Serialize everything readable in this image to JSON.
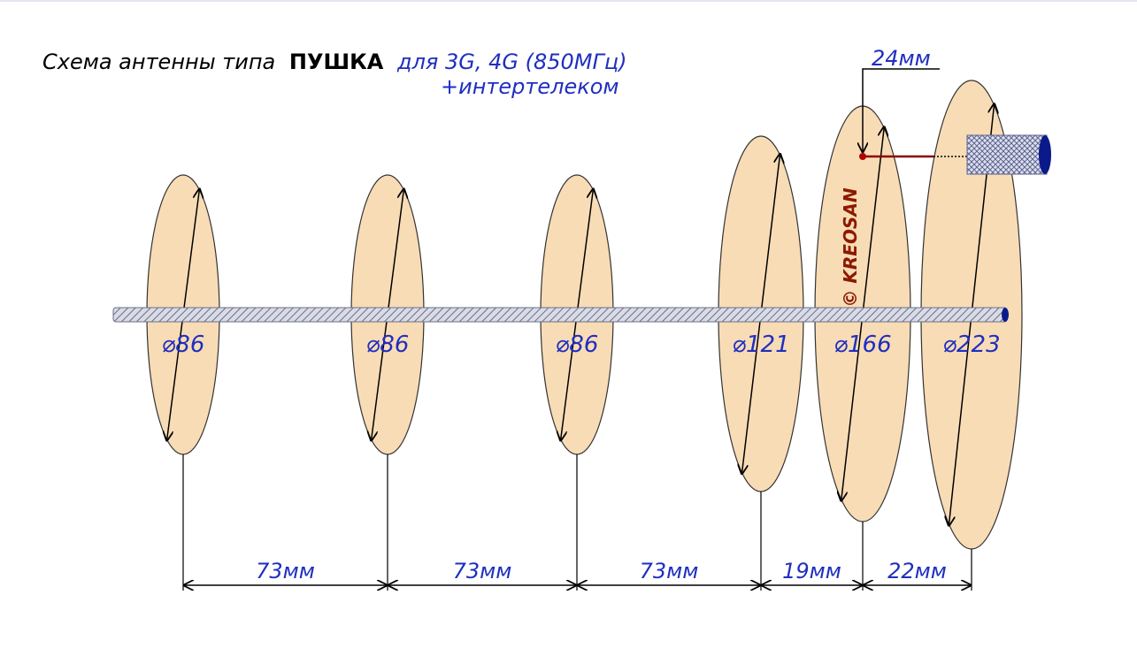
{
  "title": {
    "prefix": "Схема антенны типа",
    "bold": "ПУШКА",
    "suffix": "для 3G, 4G (850МГц)",
    "line2": "+интертелеком"
  },
  "discs": [
    {
      "label": "⌀86"
    },
    {
      "label": "⌀86"
    },
    {
      "label": "⌀86"
    },
    {
      "label": "⌀121"
    },
    {
      "label": "⌀166"
    },
    {
      "label": "⌀223"
    }
  ],
  "spacings": [
    "73мм",
    "73мм",
    "73мм",
    "19мм",
    "22мм"
  ],
  "feed_offset": "24мм",
  "watermark": "© KREOSAN"
}
